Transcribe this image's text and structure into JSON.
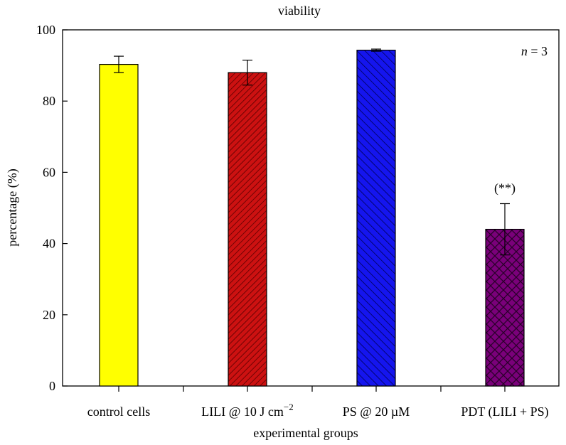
{
  "chart_data": {
    "type": "bar",
    "title": "viability",
    "xlabel": "experimental groups",
    "ylabel": "percentage (%)",
    "ylim": [
      0,
      100
    ],
    "yticks": [
      0,
      20,
      40,
      60,
      80,
      100
    ],
    "categories": [
      {
        "label": "control cells",
        "value": 90.3,
        "error": 2.3,
        "color": "#ffff00",
        "pattern": "none"
      },
      {
        "label": "LILI @ 10 J cm",
        "superscript": "−2",
        "value": 88.0,
        "error": 3.5,
        "color": "#cc1111",
        "pattern": "diagonal-dense"
      },
      {
        "label": "PS @ 20 µM",
        "value": 94.3,
        "error": 0.3,
        "color": "#1515ee",
        "pattern": "diagonal-back"
      },
      {
        "label": "PDT (LILI + PS)",
        "value": 44.0,
        "error": 7.2,
        "color": "#7a007a",
        "pattern": "crosshatch",
        "annotation": "(**)"
      }
    ],
    "n_label_italic": "n",
    "n_label_rest": " = 3",
    "grid": false,
    "legend": "none"
  }
}
